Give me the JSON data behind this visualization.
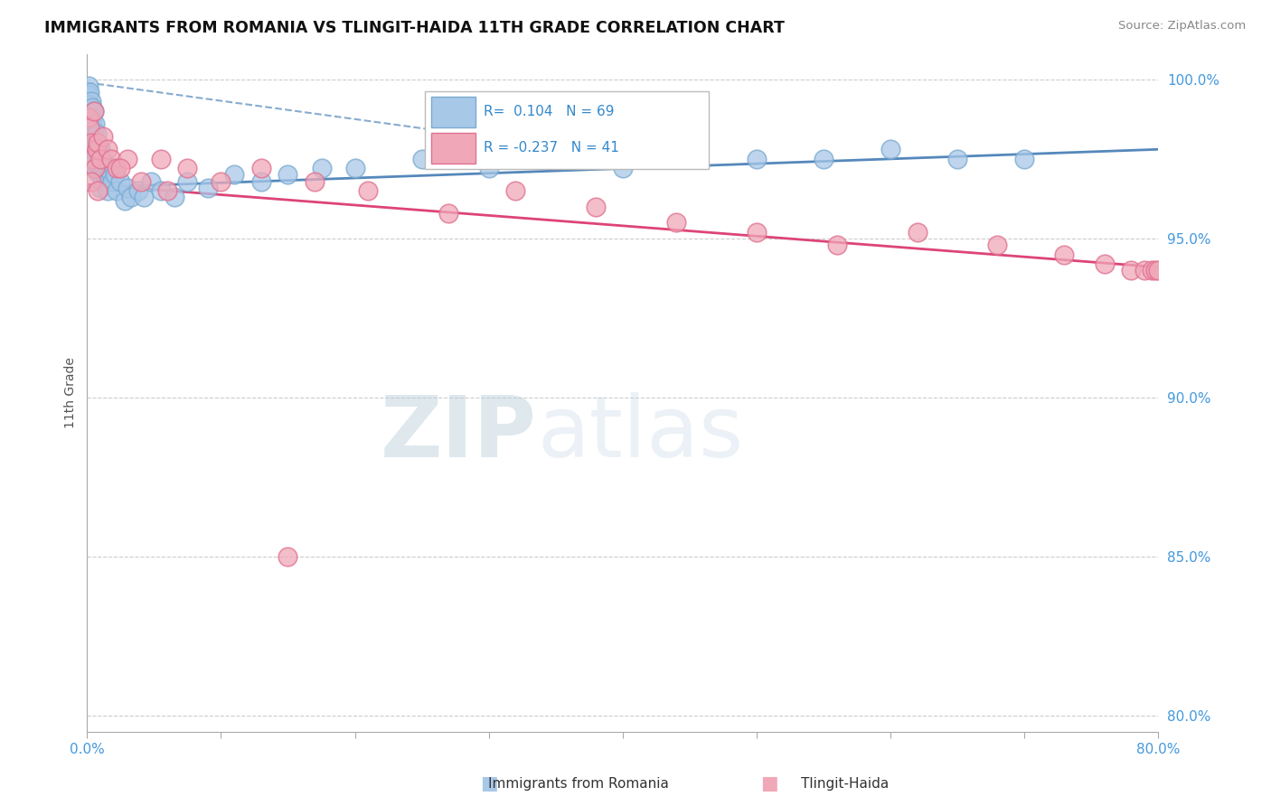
{
  "title": "IMMIGRANTS FROM ROMANIA VS TLINGIT-HAIDA 11TH GRADE CORRELATION CHART",
  "ylabel": "11th Grade",
  "source_text": "Source: ZipAtlas.com",
  "xmin": 0.0,
  "xmax": 0.8,
  "ymin": 0.795,
  "ymax": 1.008,
  "legend_blue_r": "0.104",
  "legend_blue_n": "69",
  "legend_pink_r": "-0.237",
  "legend_pink_n": "41",
  "blue_color": "#a8c8e8",
  "pink_color": "#f0a8b8",
  "blue_edge_color": "#7aaad0",
  "pink_edge_color": "#e07090",
  "trendline_blue_color": "#5588bb",
  "trendline_pink_color": "#dd4477",
  "blue_scatter_x": [
    0.001,
    0.001,
    0.001,
    0.002,
    0.002,
    0.002,
    0.003,
    0.003,
    0.003,
    0.004,
    0.004,
    0.004,
    0.005,
    0.005,
    0.005,
    0.005,
    0.006,
    0.006,
    0.006,
    0.007,
    0.007,
    0.007,
    0.008,
    0.008,
    0.009,
    0.009,
    0.01,
    0.01,
    0.01,
    0.011,
    0.011,
    0.012,
    0.013,
    0.014,
    0.015,
    0.015,
    0.016,
    0.017,
    0.018,
    0.019,
    0.02,
    0.021,
    0.022,
    0.025,
    0.028,
    0.03,
    0.033,
    0.038,
    0.042,
    0.048,
    0.055,
    0.065,
    0.075,
    0.09,
    0.11,
    0.13,
    0.15,
    0.175,
    0.2,
    0.25,
    0.3,
    0.35,
    0.4,
    0.45,
    0.5,
    0.55,
    0.6,
    0.65,
    0.7
  ],
  "blue_scatter_y": [
    0.998,
    0.995,
    0.99,
    0.996,
    0.992,
    0.988,
    0.993,
    0.988,
    0.983,
    0.991,
    0.986,
    0.98,
    0.99,
    0.984,
    0.978,
    0.972,
    0.986,
    0.98,
    0.974,
    0.983,
    0.977,
    0.971,
    0.98,
    0.974,
    0.977,
    0.971,
    0.978,
    0.972,
    0.966,
    0.975,
    0.969,
    0.972,
    0.97,
    0.968,
    0.972,
    0.965,
    0.969,
    0.971,
    0.97,
    0.968,
    0.972,
    0.97,
    0.965,
    0.968,
    0.962,
    0.966,
    0.963,
    0.965,
    0.963,
    0.968,
    0.965,
    0.963,
    0.968,
    0.966,
    0.97,
    0.968,
    0.97,
    0.972,
    0.972,
    0.975,
    0.972,
    0.975,
    0.972,
    0.975,
    0.975,
    0.975,
    0.978,
    0.975,
    0.975
  ],
  "pink_scatter_x": [
    0.001,
    0.002,
    0.003,
    0.004,
    0.005,
    0.006,
    0.007,
    0.008,
    0.01,
    0.012,
    0.015,
    0.018,
    0.022,
    0.03,
    0.04,
    0.055,
    0.075,
    0.1,
    0.13,
    0.17,
    0.21,
    0.27,
    0.32,
    0.38,
    0.44,
    0.5,
    0.56,
    0.62,
    0.68,
    0.73,
    0.76,
    0.78,
    0.79,
    0.795,
    0.798,
    0.8,
    0.003,
    0.008,
    0.025,
    0.06,
    0.15
  ],
  "pink_scatter_y": [
    0.988,
    0.985,
    0.98,
    0.975,
    0.99,
    0.972,
    0.978,
    0.98,
    0.975,
    0.982,
    0.978,
    0.975,
    0.972,
    0.975,
    0.968,
    0.975,
    0.972,
    0.968,
    0.972,
    0.968,
    0.965,
    0.958,
    0.965,
    0.96,
    0.955,
    0.952,
    0.948,
    0.952,
    0.948,
    0.945,
    0.942,
    0.94,
    0.94,
    0.94,
    0.94,
    0.94,
    0.968,
    0.965,
    0.972,
    0.965,
    0.85
  ],
  "trendline_blue_x0": 0.0,
  "trendline_blue_y0": 0.966,
  "trendline_blue_x1": 0.8,
  "trendline_blue_y1": 0.978,
  "trendline_pink_x0": 0.0,
  "trendline_pink_y0": 0.967,
  "trendline_pink_x1": 0.8,
  "trendline_pink_y1": 0.941,
  "trendline_blue_dashed_x0": 0.0,
  "trendline_blue_dashed_y0": 0.999,
  "trendline_blue_dashed_x1": 0.4,
  "trendline_blue_dashed_y1": 0.976,
  "watermark_zip": "ZIP",
  "watermark_atlas": "atlas",
  "yticks": [
    0.8,
    0.85,
    0.9,
    0.95,
    1.0
  ],
  "ytick_labels": [
    "80.0%",
    "85.0%",
    "90.0%",
    "95.0%",
    "100.0%"
  ],
  "xtick_positions": [
    0.0,
    0.1,
    0.2,
    0.3,
    0.4,
    0.5,
    0.6,
    0.7,
    0.8
  ],
  "xtick_labels": [
    "0.0%",
    "",
    "",
    "",
    "",
    "",
    "",
    "",
    "80.0%"
  ],
  "grid_color": "#cccccc",
  "legend_label_blue": "Immigrants from Romania",
  "legend_label_pink": "Tlingit-Haida"
}
